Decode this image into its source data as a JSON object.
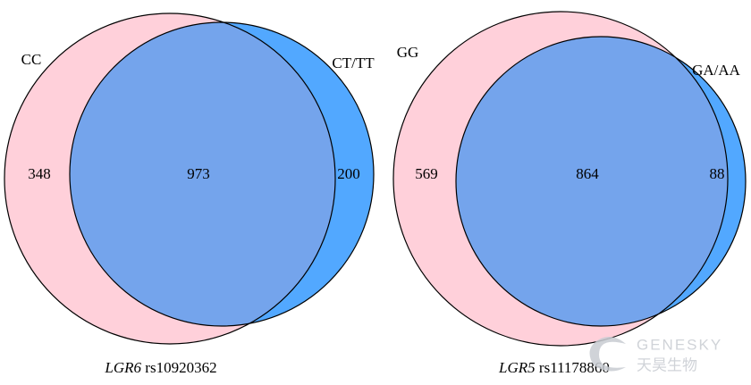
{
  "diagrams": [
    {
      "set_a": "CC",
      "set_b": "CT/TT",
      "only_a": 348,
      "both": 973,
      "only_b": 200,
      "caption_gene": "LGR6",
      "caption_snp": "rs10920362"
    },
    {
      "set_a": "GG",
      "set_b": "GA/AA",
      "only_a": 569,
      "both": 864,
      "only_b": 88,
      "caption_gene": "LGR5",
      "caption_snp": "rs11178860"
    }
  ],
  "watermark": {
    "brand": "GENESKY",
    "chinese": "天昊生物"
  }
}
